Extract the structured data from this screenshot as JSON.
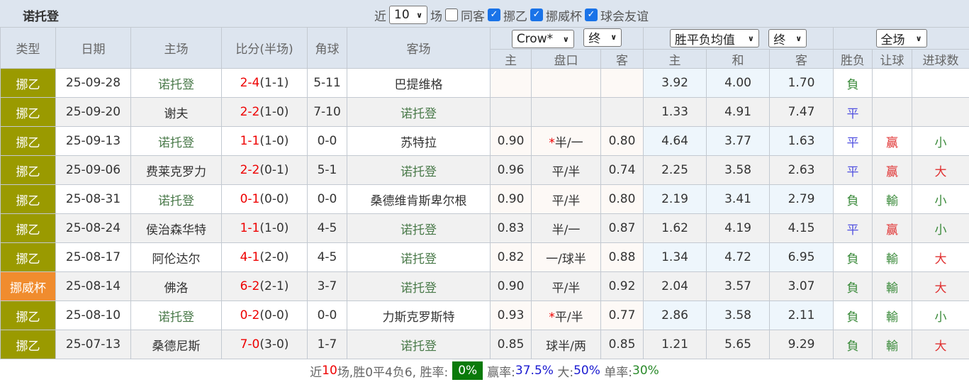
{
  "title": "诺托登",
  "filters": {
    "near_label": "近",
    "count": "10",
    "games_label": "场",
    "same_label": "同客",
    "same_checked": false,
    "leagues": [
      {
        "label": "挪乙",
        "checked": true
      },
      {
        "label": "挪威杯",
        "checked": true
      },
      {
        "label": "球会友谊",
        "checked": true
      }
    ]
  },
  "header": {
    "type": "类型",
    "date": "日期",
    "home": "主场",
    "score": "比分(半场)",
    "corner": "角球",
    "away": "客场",
    "company": "Crow*",
    "ah_stage": "终",
    "odds_type": "胜平负均值",
    "odds_stage": "终",
    "scope": "全场",
    "ah_home": "主",
    "ah_line": "盘口",
    "ah_away": "客",
    "o_home": "主",
    "o_draw": "和",
    "o_away": "客",
    "result": "胜负",
    "handicap": "让球",
    "goals": "进球数"
  },
  "rows": [
    {
      "type": "挪乙",
      "date": "25-09-28",
      "home": "诺托登",
      "ft": "2-4",
      "ht": "(1-1)",
      "corner": "5-11",
      "away": "巴提维格",
      "ah_h": "",
      "star": "",
      "line": "",
      "ah_a": "",
      "oh": "3.92",
      "od": "4.00",
      "oa": "1.70",
      "res": "負",
      "hc": "",
      "goals": "",
      "hl": "home"
    },
    {
      "type": "挪乙",
      "date": "25-09-20",
      "home": "谢夫",
      "ft": "2-2",
      "ht": "(1-0)",
      "corner": "7-10",
      "away": "诺托登",
      "ah_h": "",
      "star": "",
      "line": "",
      "ah_a": "",
      "oh": "1.33",
      "od": "4.91",
      "oa": "7.47",
      "res": "平",
      "hc": "",
      "goals": "",
      "hl": "away"
    },
    {
      "type": "挪乙",
      "date": "25-09-13",
      "home": "诺托登",
      "ft": "1-1",
      "ht": "(1-0)",
      "corner": "0-0",
      "away": "苏特拉",
      "ah_h": "0.90",
      "star": "*",
      "line": "半/一",
      "ah_a": "0.80",
      "oh": "4.64",
      "od": "3.77",
      "oa": "1.63",
      "res": "平",
      "hc": "赢",
      "goals": "小",
      "hl": "home"
    },
    {
      "type": "挪乙",
      "date": "25-09-06",
      "home": "费莱克罗力",
      "ft": "2-2",
      "ht": "(0-1)",
      "corner": "5-1",
      "away": "诺托登",
      "ah_h": "0.96",
      "star": "",
      "line": "平/半",
      "ah_a": "0.74",
      "oh": "2.25",
      "od": "3.58",
      "oa": "2.63",
      "res": "平",
      "hc": "赢",
      "goals": "大",
      "hl": "away"
    },
    {
      "type": "挪乙",
      "date": "25-08-31",
      "home": "诺托登",
      "ft": "0-1",
      "ht": "(0-0)",
      "corner": "0-0",
      "away": "桑德维肯斯卑尔根",
      "ah_h": "0.90",
      "star": "",
      "line": "平/半",
      "ah_a": "0.80",
      "oh": "2.19",
      "od": "3.41",
      "oa": "2.79",
      "res": "負",
      "hc": "輸",
      "goals": "小",
      "hl": "home"
    },
    {
      "type": "挪乙",
      "date": "25-08-24",
      "home": "侯治森华特",
      "ft": "1-1",
      "ht": "(1-0)",
      "corner": "4-5",
      "away": "诺托登",
      "ah_h": "0.83",
      "star": "",
      "line": "半/一",
      "ah_a": "0.87",
      "oh": "1.62",
      "od": "4.19",
      "oa": "4.15",
      "res": "平",
      "hc": "赢",
      "goals": "小",
      "hl": "away"
    },
    {
      "type": "挪乙",
      "date": "25-08-17",
      "home": "阿伦达尔",
      "ft": "4-1",
      "ht": "(2-0)",
      "corner": "4-5",
      "away": "诺托登",
      "ah_h": "0.82",
      "star": "",
      "line": "一/球半",
      "ah_a": "0.88",
      "oh": "1.34",
      "od": "4.72",
      "oa": "6.95",
      "res": "負",
      "hc": "輸",
      "goals": "大",
      "hl": "away"
    },
    {
      "type": "挪威杯",
      "date": "25-08-14",
      "home": "佛洛",
      "ft": "6-2",
      "ht": "(2-1)",
      "corner": "3-7",
      "away": "诺托登",
      "ah_h": "0.90",
      "star": "",
      "line": "平/半",
      "ah_a": "0.92",
      "oh": "2.04",
      "od": "3.57",
      "oa": "3.07",
      "res": "負",
      "hc": "輸",
      "goals": "大",
      "hl": "away"
    },
    {
      "type": "挪乙",
      "date": "25-08-10",
      "home": "诺托登",
      "ft": "0-2",
      "ht": "(0-0)",
      "corner": "0-0",
      "away": "力斯克罗斯特",
      "ah_h": "0.93",
      "star": "*",
      "line": "平/半",
      "ah_a": "0.77",
      "oh": "2.86",
      "od": "3.58",
      "oa": "2.11",
      "res": "負",
      "hc": "輸",
      "goals": "小",
      "hl": "home"
    },
    {
      "type": "挪乙",
      "date": "25-07-13",
      "home": "桑德尼斯",
      "ft": "7-0",
      "ht": "(3-0)",
      "corner": "1-7",
      "away": "诺托登",
      "ah_h": "0.85",
      "star": "",
      "line": "球半/两",
      "ah_a": "0.85",
      "oh": "1.21",
      "od": "5.65",
      "oa": "9.29",
      "res": "負",
      "hc": "輸",
      "goals": "大",
      "hl": "away"
    }
  ],
  "footer": {
    "p1": "近",
    "n": "10",
    "p2": "场,胜0平4负6, 胜率:",
    "win_rate": "0%",
    "hc_label": "赢率:",
    "hc_rate": "37.5%",
    "big_label": "大:",
    "big_rate": "50%",
    "odd_label": "单率:",
    "odd_rate": "30%"
  },
  "colors": {
    "league": "#9a9a00",
    "cup": "#f08c2e",
    "badge": "#0a7a0a"
  }
}
